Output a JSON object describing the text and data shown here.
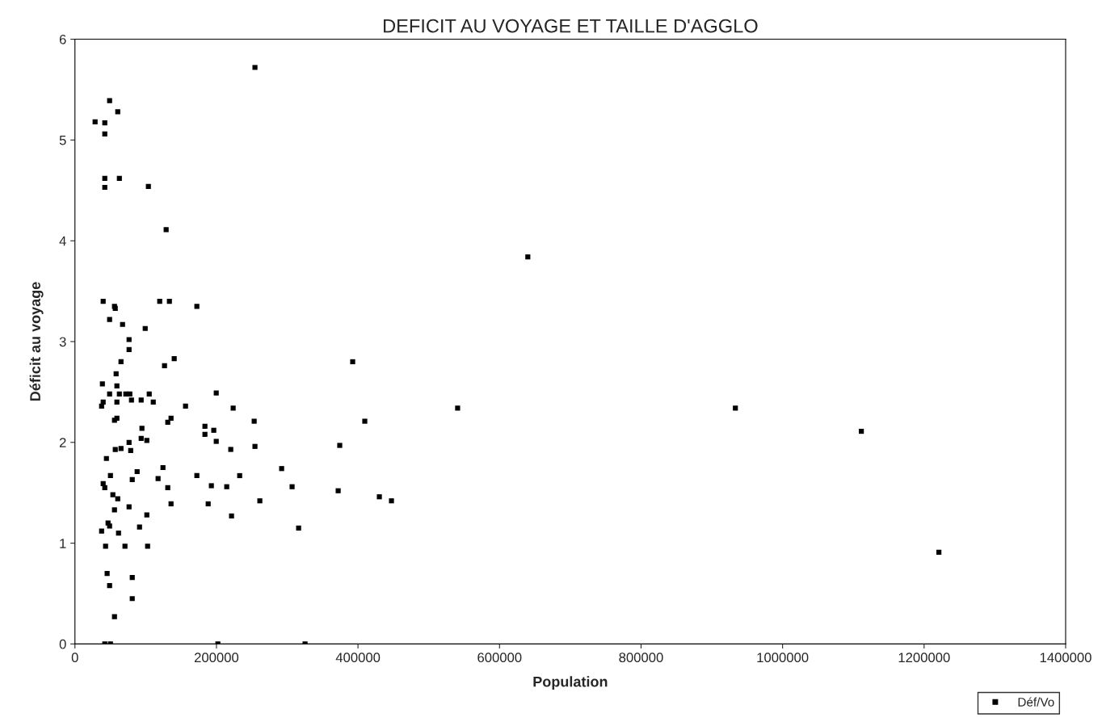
{
  "chart_data": {
    "type": "scatter",
    "title": "DEFICIT AU VOYAGE ET TAILLE D'AGGLO",
    "xlabel": "Population",
    "ylabel": "Déficit au voyage",
    "series": [
      {
        "name": "Déf/Vo",
        "color": "#000000",
        "x": [
          28500,
          42200,
          42200,
          49000,
          60500,
          254400,
          42200,
          42200,
          62800,
          103800,
          128900,
          640000,
          39900,
          55900,
          57000,
          119800,
          133500,
          172300,
          49000,
          67300,
          99300,
          76500,
          76500,
          65100,
          140300,
          126600,
          392500,
          38800,
          59300,
          49000,
          62800,
          58200,
          77600,
          79900,
          93600,
          105000,
          39900,
          37700,
          59300,
          71900,
          110700,
          156300,
          199700,
          223600,
          540800,
          933300,
          1111300,
          1220900,
          409600,
          374200,
          253300,
          135800,
          131200,
          94700,
          101600,
          93600,
          183700,
          196200,
          183700,
          199700,
          55900,
          59300,
          44500,
          57000,
          65100,
          76500,
          78800,
          220200,
          254400,
          50200,
          87900,
          81000,
          117500,
          124400,
          131200,
          172300,
          192800,
          232800,
          214500,
          292100,
          306900,
          372000,
          447300,
          430200,
          39900,
          42200,
          53600,
          60500,
          55900,
          76500,
          135800,
          188300,
          261300,
          101600,
          221300,
          37700,
          49000,
          46800,
          316100,
          61600,
          91300,
          43300,
          70700,
          102700,
          45500,
          49000,
          81000,
          81000,
          55900,
          42200,
          50200,
          202000,
          325200
        ],
        "values": [
          5.18,
          5.17,
          5.06,
          5.39,
          5.28,
          5.72,
          4.62,
          4.53,
          4.62,
          4.54,
          4.11,
          3.84,
          3.4,
          3.35,
          3.33,
          3.4,
          3.4,
          3.35,
          3.22,
          3.17,
          3.13,
          3.02,
          2.92,
          2.8,
          2.83,
          2.76,
          2.8,
          2.58,
          2.56,
          2.48,
          2.48,
          2.68,
          2.48,
          2.42,
          2.42,
          2.48,
          2.4,
          2.36,
          2.4,
          2.48,
          2.4,
          2.36,
          2.49,
          2.34,
          2.34,
          2.34,
          2.11,
          0.91,
          2.21,
          1.97,
          2.21,
          2.24,
          2.2,
          2.14,
          2.02,
          2.04,
          2.16,
          2.12,
          2.08,
          2.01,
          2.22,
          2.24,
          1.84,
          1.93,
          1.94,
          2.0,
          1.92,
          1.93,
          1.96,
          1.67,
          1.71,
          1.63,
          1.64,
          1.75,
          1.55,
          1.67,
          1.57,
          1.67,
          1.56,
          1.74,
          1.56,
          1.52,
          1.42,
          1.46,
          1.59,
          1.55,
          1.48,
          1.44,
          1.33,
          1.36,
          1.39,
          1.39,
          1.42,
          1.28,
          1.27,
          1.12,
          1.17,
          1.2,
          1.15,
          1.1,
          1.16,
          0.97,
          0.97,
          0.97,
          0.7,
          0.58,
          0.66,
          0.45,
          0.27,
          0,
          0,
          0,
          0
        ]
      }
    ],
    "xlim": [
      0,
      1400000
    ],
    "xticks": [
      0,
      200000,
      400000,
      600000,
      800000,
      1000000,
      1200000,
      1400000
    ],
    "ylim": [
      0,
      6
    ],
    "yticks": [
      0,
      1,
      2,
      3,
      4,
      5,
      6
    ],
    "marker": "square",
    "grid": false,
    "legend": "bottom right"
  }
}
